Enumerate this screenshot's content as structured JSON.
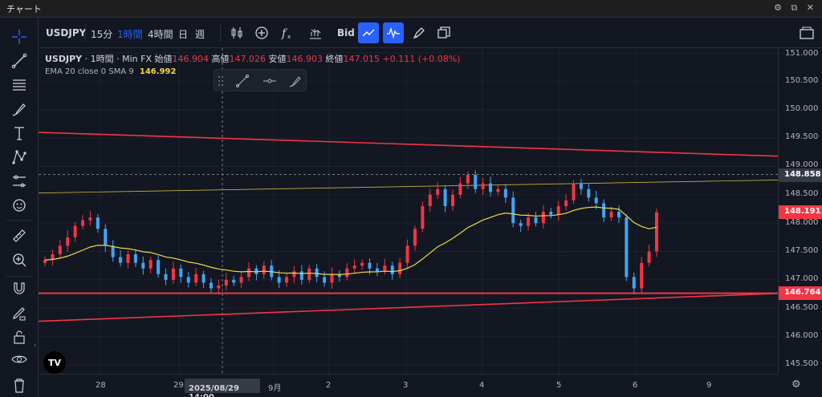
{
  "window": {
    "title": "チャート"
  },
  "toolbar": {
    "symbol": "USDJPY",
    "intervals": [
      "15分",
      "1時間",
      "4時間",
      "日",
      "週"
    ],
    "active_interval": "1時間",
    "price_source": "Bid"
  },
  "legend": {
    "symbol": "USDJPY",
    "interval": "1時間",
    "source": "Min FX",
    "open_label": "始値",
    "open": "146.904",
    "high_label": "高値",
    "high": "147.026",
    "low_label": "安値",
    "low": "146.903",
    "close_label": "終値",
    "close": "147.015",
    "change": "+0.111 (+0.08%)",
    "indicator": "EMA 20 close 0 SMA 9",
    "indicator_value": "146.992"
  },
  "price_axis": {
    "ticks": [
      "151.000",
      "150.500",
      "150.000",
      "149.500",
      "149.000",
      "148.500",
      "148.000",
      "147.500",
      "147.000",
      "146.500",
      "146.000",
      "145.500"
    ],
    "crosshair_price": "148.858",
    "last_price": "148.191",
    "line_price": "146.764"
  },
  "time_axis": {
    "ticks": [
      "28",
      "29",
      "9月",
      "2",
      "3",
      "4",
      "5",
      "6",
      "9"
    ],
    "crosshair_time": "2025/08/29　14:00"
  },
  "logo": "TV",
  "colors": {
    "accent": "#2962ff",
    "up": "#089981",
    "down": "#f23645",
    "ema": "#f2d84a",
    "trendline": "#f23645",
    "crosshair_label": "#363a45"
  },
  "icons": [
    "crosshair-icon",
    "trendline-icon",
    "fib-icon",
    "brush-icon",
    "text-icon",
    "pattern-icon",
    "forecast-icon",
    "emoji-icon",
    "ruler-icon",
    "zoom-icon",
    "magnet-icon",
    "lock-draw-icon",
    "lock-icon",
    "eye-icon",
    "trash-icon"
  ],
  "chart_data": {
    "type": "candlestick",
    "symbol": "USDJPY",
    "x_dates": [
      "8/28",
      "8/29",
      "9/1",
      "9/2",
      "9/3",
      "9/4",
      "9/5",
      "9/6"
    ],
    "ylim": [
      145.3,
      151.1
    ],
    "trend_lines": [
      {
        "from": {
          "x": "8/27 10:00",
          "y": 149.6
        },
        "to": {
          "x": "9/9 18:00",
          "y": 149.18
        }
      },
      {
        "from": {
          "x": "8/27 10:00",
          "y": 146.27
        },
        "to": {
          "x": "9/9 18:00",
          "y": 146.76
        }
      }
    ],
    "horizontal_lines": [
      146.764
    ],
    "ema_line": {
      "from": {
        "x": "8/27 10:00",
        "y": 148.53
      },
      "to": {
        "x": "9/9 18:00",
        "y": 148.76
      }
    },
    "closes": [
      147.35,
      147.45,
      147.6,
      147.75,
      147.95,
      148.05,
      148.1,
      147.9,
      147.6,
      147.4,
      147.3,
      147.45,
      147.3,
      147.2,
      147.35,
      147.1,
      147.0,
      147.2,
      147.05,
      146.95,
      147.1,
      146.95,
      146.85,
      146.9,
      147.0,
      146.95,
      147.05,
      147.2,
      147.1,
      147.25,
      147.05,
      146.95,
      147.05,
      147.15,
      147.0,
      147.2,
      147.05,
      146.95,
      147.1,
      147.05,
      147.2,
      147.25,
      147.3,
      147.2,
      147.15,
      147.25,
      147.1,
      147.3,
      147.6,
      147.9,
      148.3,
      148.5,
      148.6,
      148.3,
      148.5,
      148.7,
      148.85,
      148.6,
      148.7,
      148.55,
      148.6,
      148.45,
      148.0,
      147.95,
      148.1,
      148.0,
      148.2,
      148.15,
      148.3,
      148.4,
      148.7,
      148.6,
      148.45,
      148.35,
      148.1,
      148.2,
      148.1,
      147.05,
      146.85,
      147.3,
      147.5,
      148.19
    ]
  }
}
